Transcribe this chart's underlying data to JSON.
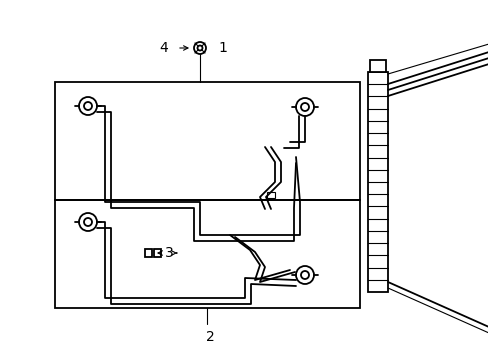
{
  "bg": "#ffffff",
  "lc": "#000000",
  "fig_w": 4.89,
  "fig_h": 3.6,
  "dpi": 100,
  "lw": 1.3,
  "lw_thin": 0.8,
  "labels": [
    "1",
    "2",
    "3",
    "4"
  ],
  "fs": 10
}
